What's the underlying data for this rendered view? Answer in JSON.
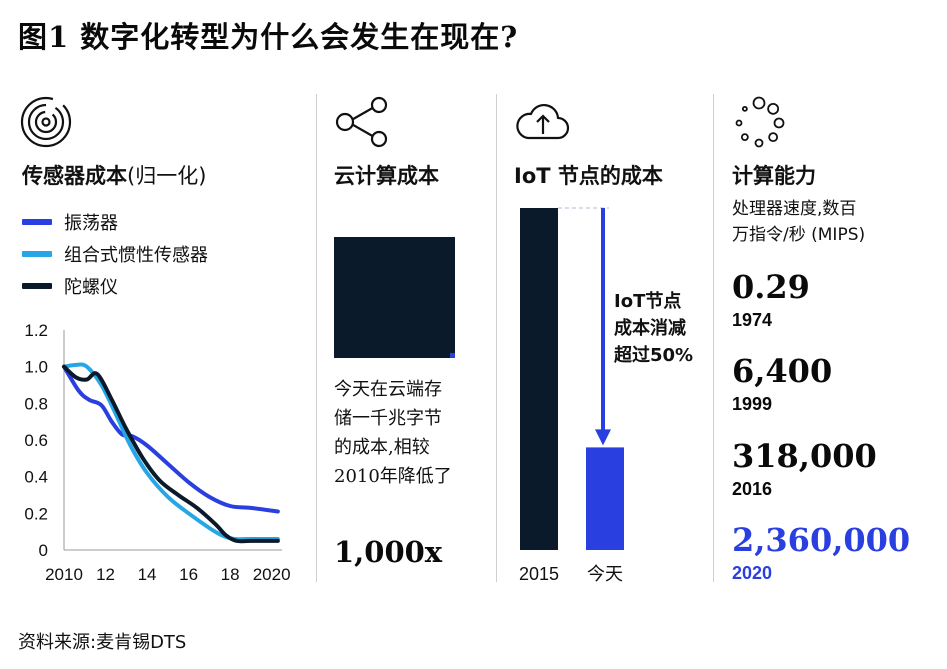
{
  "title": "图1 数字化转型为什么会发生在现在?",
  "source": "资料来源:麦肯锡DTS",
  "colors": {
    "navy": "#0b1a2b",
    "blue": "#2a3fe0",
    "cyan": "#27a6e6",
    "divider": "#cfcfcf"
  },
  "panels": {
    "sensor": {
      "icon": "spiral-sensor-icon",
      "title": "传感器成本",
      "title_suffix": "(归一化)",
      "legend": [
        {
          "label": "振荡器",
          "color": "#2a3fe0"
        },
        {
          "label": "组合式惯性传感器",
          "color": "#27a6e6"
        },
        {
          "label": "陀螺仪",
          "color": "#0b1a2b"
        }
      ]
    },
    "cloud": {
      "icon": "share-icon",
      "title": "云计算成本",
      "text_lines": [
        "今天在云端存",
        "储一千兆字节",
        "的成本,相较",
        "2010年降低了"
      ],
      "value": "1,000x"
    },
    "iot": {
      "icon": "cloud-upload-icon",
      "title": "IoT 节点的成本",
      "annotation": [
        "IoT节点",
        "成本消减",
        "超过50%"
      ]
    },
    "compute": {
      "icon": "loading-dots-icon",
      "title": "计算能力",
      "subtitle_lines": [
        "处理器速度,数百",
        "万指令/秒 (MIPS)"
      ],
      "stats": [
        {
          "value": "0.29",
          "year": "1974"
        },
        {
          "value": "6,400",
          "year": "1999"
        },
        {
          "value": "318,000",
          "year": "2016"
        },
        {
          "value": "2,360,000",
          "year": "2020",
          "highlight": true
        }
      ]
    }
  },
  "chart_data": [
    {
      "type": "line",
      "title": "传感器成本",
      "x_tick_labels": [
        "2010",
        "12",
        "14",
        "16",
        "18",
        "2020"
      ],
      "x_ticks": [
        2010,
        2012,
        2014,
        2016,
        2018,
        2020
      ],
      "xlim": [
        2010,
        2020.5
      ],
      "ylim": [
        0,
        1.2
      ],
      "y_ticks": [
        0,
        0.2,
        0.4,
        0.6,
        0.8,
        1.0,
        1.2
      ],
      "y_tick_labels": [
        "0",
        "0.2",
        "0.4",
        "0.6",
        "0.8",
        "1.0",
        "1.2"
      ],
      "grid": false,
      "series": [
        {
          "name": "振荡器",
          "color": "#2a3fe0",
          "x": [
            2010,
            2010.7,
            2011.2,
            2011.8,
            2012.3,
            2012.8,
            2013.3,
            2014,
            2015,
            2016,
            2017,
            2018,
            2019,
            2020.3
          ],
          "y": [
            1.0,
            0.87,
            0.82,
            0.79,
            0.7,
            0.63,
            0.62,
            0.57,
            0.47,
            0.37,
            0.29,
            0.24,
            0.23,
            0.21
          ]
        },
        {
          "name": "组合式惯性传感器",
          "color": "#27a6e6",
          "x": [
            2010,
            2010.6,
            2011.1,
            2011.8,
            2012.5,
            2013.2,
            2014,
            2015,
            2016,
            2017,
            2017.6,
            2018.2,
            2019,
            2020.3
          ],
          "y": [
            1.0,
            1.01,
            1.0,
            0.9,
            0.74,
            0.57,
            0.42,
            0.29,
            0.2,
            0.12,
            0.08,
            0.06,
            0.06,
            0.06
          ]
        },
        {
          "name": "陀螺仪",
          "color": "#0b1a2b",
          "x": [
            2010,
            2010.6,
            2011.1,
            2011.6,
            2012.3,
            2013,
            2013.8,
            2014.6,
            2015.5,
            2016.4,
            2017.3,
            2017.8,
            2018.3,
            2019,
            2020.3
          ],
          "y": [
            1.0,
            0.94,
            0.93,
            0.96,
            0.82,
            0.66,
            0.5,
            0.38,
            0.3,
            0.23,
            0.14,
            0.08,
            0.05,
            0.05,
            0.05
          ]
        }
      ]
    },
    {
      "type": "bar",
      "title": "IoT 节点的成本",
      "categories": [
        "2015",
        "今天"
      ],
      "values": [
        1.0,
        0.3
      ],
      "colors": [
        "#0b1a2b",
        "#2a3fe0"
      ],
      "ylim": [
        0,
        1.0
      ]
    }
  ]
}
